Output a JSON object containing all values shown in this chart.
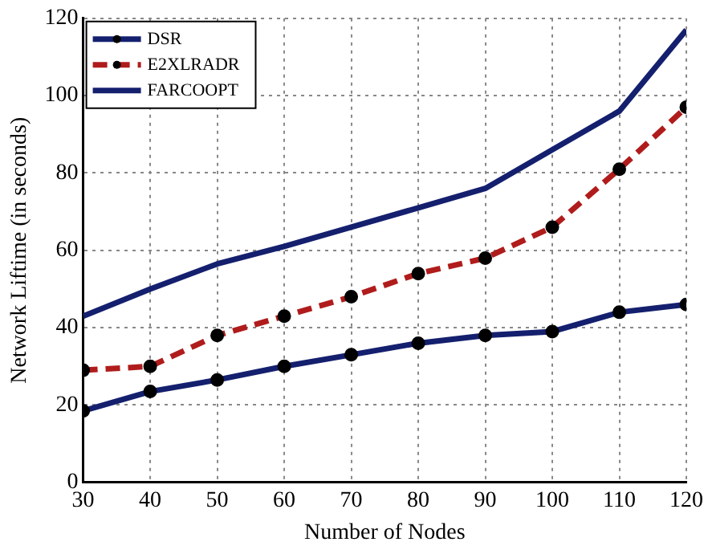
{
  "chart_data": {
    "type": "line",
    "xlabel": "Number of Nodes",
    "ylabel": "Network Liftime (in seconds)",
    "x": [
      30,
      40,
      50,
      60,
      70,
      80,
      90,
      100,
      110,
      120
    ],
    "series": [
      {
        "name": "DSR",
        "color": "#14206e",
        "marker": "circle",
        "line_style": "solid",
        "values": [
          18.5,
          23.5,
          26.5,
          30,
          33,
          36,
          38,
          39,
          44,
          46
        ]
      },
      {
        "name": "E2XLRADR",
        "color": "#b01c1c",
        "marker": "circle",
        "line_style": "dashed",
        "values": [
          29,
          30,
          38,
          43,
          48,
          54,
          58,
          66,
          81,
          97
        ]
      },
      {
        "name": "FARCOOPT",
        "color": "#14206e",
        "marker": "none",
        "line_style": "solid",
        "values": [
          43,
          50,
          56.5,
          61,
          66,
          71,
          76,
          86,
          96,
          117
        ]
      }
    ],
    "xlim": [
      30,
      120
    ],
    "xticks": [
      30,
      40,
      50,
      60,
      70,
      80,
      90,
      100,
      110,
      120
    ],
    "ylim": [
      0,
      120
    ],
    "yticks": [
      0,
      20,
      40,
      60,
      80,
      100,
      120
    ],
    "grid": true,
    "legend": "top left"
  }
}
